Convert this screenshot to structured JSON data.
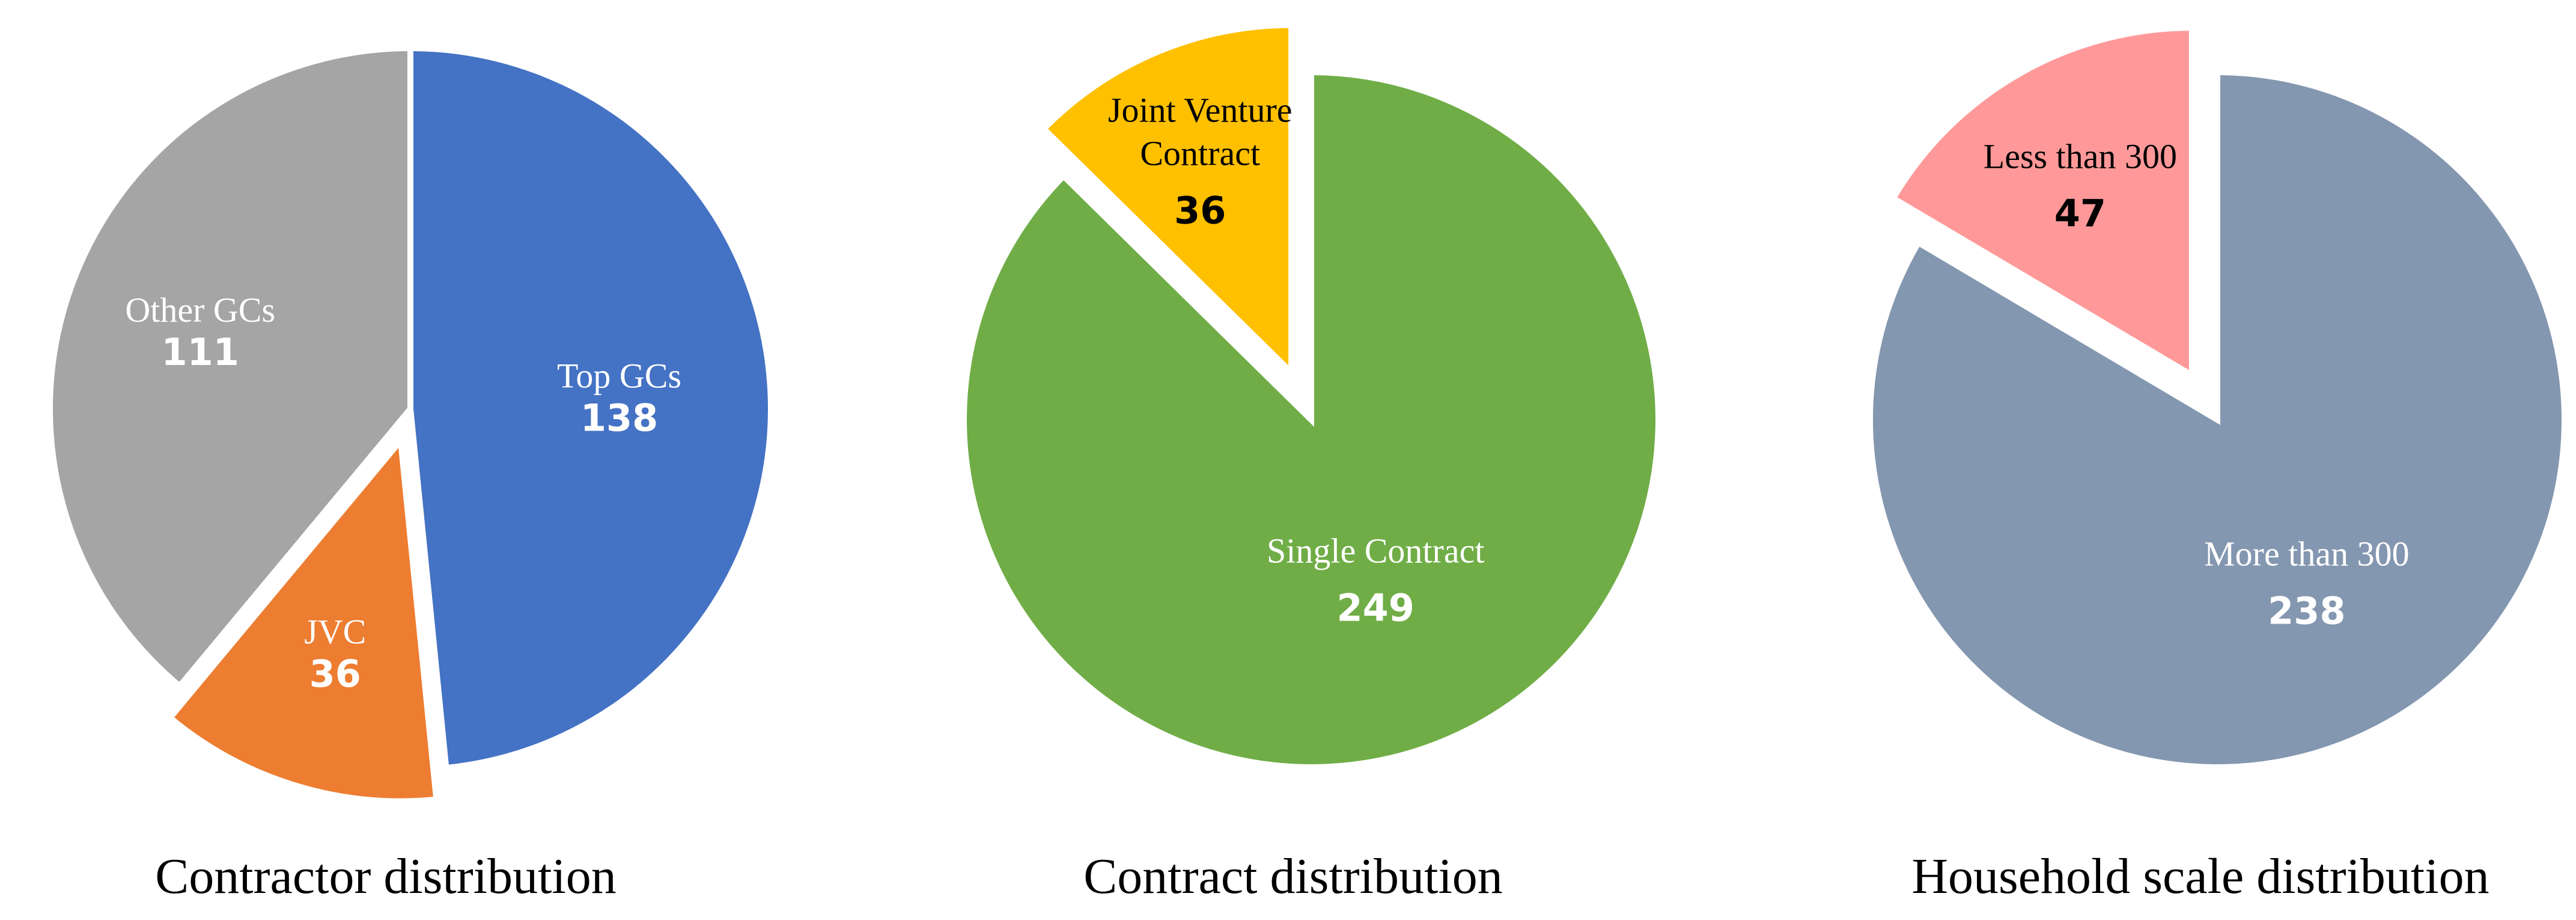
{
  "chart_data": [
    {
      "type": "pie",
      "title": "Contractor distribution",
      "slices": [
        {
          "label": "Top GCs",
          "value": 138,
          "color": "#4472C4",
          "label_color": "#ffffff",
          "value_color": "#ffffff",
          "exploded": false
        },
        {
          "label": "JVC",
          "value": 36,
          "color": "#ED7D31",
          "label_color": "#ffffff",
          "value_color": "#ffffff",
          "exploded": true
        },
        {
          "label": "Other GCs",
          "value": 111,
          "color": "#A5A5A5",
          "label_color": "#ffffff",
          "value_color": "#ffffff",
          "exploded": false
        }
      ]
    },
    {
      "type": "pie",
      "title": "Contract distribution",
      "slices": [
        {
          "label": "Single Contract",
          "value": 249,
          "color": "#70AD47",
          "label_color": "#ffffff",
          "value_color": "#ffffff",
          "exploded": false
        },
        {
          "label": "Joint Venture Contract",
          "value": 36,
          "color": "#FFC000",
          "label_color": "#000000",
          "value_color": "#000000",
          "exploded": true
        }
      ]
    },
    {
      "type": "pie",
      "title": "Household scale distribution",
      "slices": [
        {
          "label": "More than 300",
          "value": 238,
          "color": "#8497B0",
          "label_color": "#ffffff",
          "value_color": "#ffffff",
          "exploded": false
        },
        {
          "label": "Less than 300",
          "value": 47,
          "color": "#FF9999",
          "label_color": "#000000",
          "value_color": "#000000",
          "exploded": true
        }
      ]
    }
  ]
}
